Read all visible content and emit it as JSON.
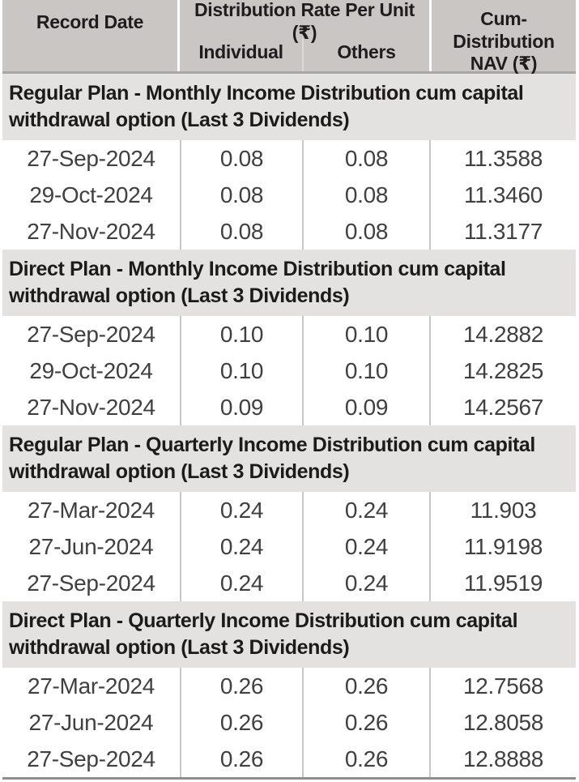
{
  "table": {
    "header": {
      "record_date": "Record Date",
      "rate_group": "Distribution Rate Per Unit (₹)",
      "individual": "Individual",
      "others": "Others",
      "cum_nav": "Cum-Distribution NAV (₹)"
    },
    "sections": [
      {
        "title": "Regular Plan - Monthly Income Distribution cum capital withdrawal option (Last 3 Dividends)",
        "rows": [
          {
            "date": "27-Sep-2024",
            "individual": "0.08",
            "others": "0.08",
            "nav": "11.3588"
          },
          {
            "date": "29-Oct-2024",
            "individual": "0.08",
            "others": "0.08",
            "nav": "11.3460"
          },
          {
            "date": "27-Nov-2024",
            "individual": "0.08",
            "others": "0.08",
            "nav": "11.3177"
          }
        ]
      },
      {
        "title": "Direct Plan - Monthly Income Distribution cum capital withdrawal option (Last 3 Dividends)",
        "rows": [
          {
            "date": "27-Sep-2024",
            "individual": "0.10",
            "others": "0.10",
            "nav": "14.2882"
          },
          {
            "date": "29-Oct-2024",
            "individual": "0.10",
            "others": "0.10",
            "nav": "14.2825"
          },
          {
            "date": "27-Nov-2024",
            "individual": "0.09",
            "others": "0.09",
            "nav": "14.2567"
          }
        ]
      },
      {
        "title": "Regular Plan - Quarterly Income Distribution cum capital withdrawal option (Last 3 Dividends)",
        "rows": [
          {
            "date": "27-Mar-2024",
            "individual": "0.24",
            "others": "0.24",
            "nav": "11.903"
          },
          {
            "date": "27-Jun-2024",
            "individual": "0.24",
            "others": "0.24",
            "nav": "11.9198"
          },
          {
            "date": "27-Sep-2024",
            "individual": "0.24",
            "others": "0.24",
            "nav": "11.9519"
          }
        ]
      },
      {
        "title": "Direct Plan - Quarterly Income Distribution cum capital withdrawal option (Last 3 Dividends)",
        "rows": [
          {
            "date": "27-Mar-2024",
            "individual": "0.26",
            "others": "0.26",
            "nav": "12.7568"
          },
          {
            "date": "27-Jun-2024",
            "individual": "0.26",
            "others": "0.26",
            "nav": "12.8058"
          },
          {
            "date": "27-Sep-2024",
            "individual": "0.26",
            "others": "0.26",
            "nav": "12.8888"
          }
        ]
      }
    ],
    "colors": {
      "header_bg": "#c9c6c3",
      "section_bg": "#e4e2e1",
      "header_underline": "#a8a5a3",
      "bottom_border": "#8e8c8d",
      "column_divider": "#c9c7c5",
      "header_text": "#1f1c1d",
      "data_text": "#404042"
    }
  }
}
